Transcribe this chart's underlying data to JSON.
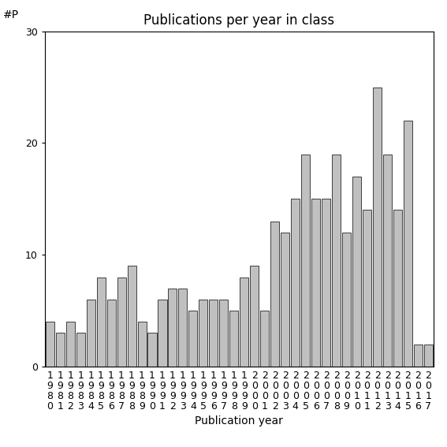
{
  "title": "Publications per year in class",
  "xlabel": "Publication year",
  "ylabel_annotation": "#P",
  "years": [
    "1980",
    "1981",
    "1982",
    "1983",
    "1984",
    "1985",
    "1986",
    "1987",
    "1988",
    "1989",
    "1990",
    "1991",
    "1992",
    "1993",
    "1994",
    "1995",
    "1996",
    "1997",
    "1998",
    "1999",
    "2000",
    "2001",
    "2002",
    "2003",
    "2004",
    "2005",
    "2006",
    "2007",
    "2008",
    "2009",
    "2010",
    "2011",
    "2012",
    "2013",
    "2014",
    "2015",
    "2016",
    "2017"
  ],
  "values": [
    4,
    3,
    4,
    3,
    6,
    8,
    6,
    8,
    9,
    4,
    3,
    6,
    7,
    7,
    5,
    6,
    6,
    6,
    5,
    8,
    9,
    5,
    13,
    12,
    15,
    19,
    15,
    15,
    19,
    12,
    17,
    14,
    25,
    19,
    14,
    22,
    2,
    2
  ],
  "bar_color": "#c0c0c0",
  "bar_edge_color": "#000000",
  "ylim": [
    0,
    30
  ],
  "yticks": [
    0,
    10,
    20,
    30
  ],
  "background_color": "#ffffff",
  "title_fontsize": 12,
  "label_fontsize": 10,
  "tick_fontsize": 9,
  "annotation_fontsize": 10
}
